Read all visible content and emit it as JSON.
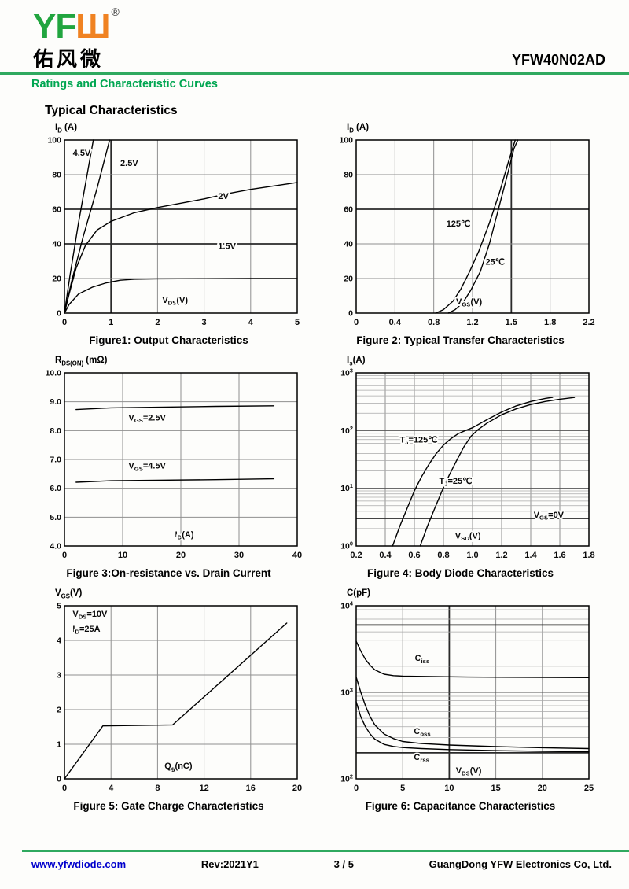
{
  "header": {
    "logo_green": "YF",
    "logo_orange": "Ш",
    "registered_mark": "®",
    "logo_chinese": "佑风微",
    "part_number": "YFW40N02AD",
    "section_title": "Ratings and Characteristic Curves"
  },
  "page_title": "Typical Characteristics",
  "footer": {
    "website": "www.yfwdiode.com",
    "revision": "Rev:2021Y1",
    "page_indicator": "3 / 5",
    "company": "GuangDong YFW Electronics Co, Ltd."
  },
  "colors": {
    "brand_green": "#00A651",
    "logo_orange": "#F08221",
    "link_blue": "#0000CC",
    "grid_gray": "#8f8f8f",
    "emphasis_dark": "#2a2a2a",
    "curve_black": "#000000"
  },
  "chart_data": [
    {
      "name": "figure-1",
      "type": "line",
      "caption": "Figure1: Output Characteristics",
      "y_title": "I_{D} (A)",
      "x": {
        "min": 0,
        "max": 5,
        "ticks": [
          0,
          1,
          2,
          3,
          4,
          5
        ],
        "tick_labels": [
          "0",
          "1",
          "2",
          "3",
          "4",
          "5"
        ],
        "emph": [
          1
        ]
      },
      "y": {
        "min": 0,
        "max": 100,
        "ticks": [
          0,
          20,
          40,
          60,
          80,
          100
        ],
        "tick_labels": [
          "0",
          "20",
          "40",
          "60",
          "80",
          "100"
        ],
        "emph": [
          40,
          60
        ]
      },
      "series": [
        {
          "name": "VGS=4.5V",
          "points": [
            [
              0,
              0
            ],
            [
              0.12,
              22
            ],
            [
              0.3,
              52
            ],
            [
              0.5,
              82
            ],
            [
              0.62,
              100
            ]
          ]
        },
        {
          "name": "VGS=2.5V",
          "points": [
            [
              0,
              0
            ],
            [
              0.15,
              18
            ],
            [
              0.4,
              44
            ],
            [
              0.7,
              72
            ],
            [
              0.97,
              100
            ]
          ]
        },
        {
          "name": "VGS=2V",
          "points": [
            [
              0,
              0
            ],
            [
              0.1,
              11
            ],
            [
              0.25,
              26
            ],
            [
              0.45,
              39
            ],
            [
              0.7,
              48
            ],
            [
              1.0,
              53
            ],
            [
              1.5,
              58
            ],
            [
              2.0,
              61
            ],
            [
              2.5,
              63.5
            ],
            [
              3.0,
              66
            ],
            [
              3.5,
              69
            ],
            [
              4.0,
              71.5
            ],
            [
              4.5,
              73.5
            ],
            [
              5.0,
              75.5
            ]
          ]
        },
        {
          "name": "VGS=1.5V",
          "points": [
            [
              0,
              0
            ],
            [
              0.1,
              5
            ],
            [
              0.3,
              11
            ],
            [
              0.6,
              15
            ],
            [
              0.9,
              17.5
            ],
            [
              1.2,
              19
            ],
            [
              1.5,
              19.6
            ],
            [
              2.0,
              19.8
            ],
            [
              3.0,
              19.9
            ],
            [
              4.0,
              20
            ],
            [
              5.0,
              20
            ]
          ]
        }
      ],
      "labels": [
        {
          "text": "4.5V",
          "x": 0.18,
          "y": 91
        },
        {
          "text": "2.5V",
          "x": 1.2,
          "y": 85
        },
        {
          "text": "2V",
          "x": 3.3,
          "y": 66
        },
        {
          "text": "1.5V",
          "x": 3.3,
          "y": 37
        },
        {
          "text": "V_{DS}(V)",
          "x": 2.1,
          "y": 6
        }
      ]
    },
    {
      "name": "figure-2",
      "type": "line",
      "caption": "Figure 2: Typical Transfer Characteristics",
      "y_title": "I_{D} (A)",
      "x": {
        "even": true,
        "ticks": [
          0,
          0.4,
          0.8,
          1.2,
          1.5,
          1.8,
          2.2
        ],
        "tick_labels": [
          "0",
          "0.4",
          "0.8",
          "1.2",
          "1.5",
          "1.8",
          "2.2"
        ],
        "emph": [
          1.5
        ]
      },
      "y": {
        "min": 0,
        "max": 100,
        "ticks": [
          0,
          20,
          40,
          60,
          80,
          100
        ],
        "tick_labels": [
          "0",
          "20",
          "40",
          "60",
          "80",
          "100"
        ],
        "emph": [
          60
        ]
      },
      "series": [
        {
          "name": "125C",
          "points": [
            [
              0.82,
              0
            ],
            [
              0.9,
              2
            ],
            [
              1.0,
              7
            ],
            [
              1.08,
              14
            ],
            [
              1.17,
              24
            ],
            [
              1.25,
              36
            ],
            [
              1.33,
              52
            ],
            [
              1.41,
              70
            ],
            [
              1.48,
              88
            ],
            [
              1.53,
              100
            ]
          ]
        },
        {
          "name": "25C",
          "points": [
            [
              0.95,
              0
            ],
            [
              1.02,
              2
            ],
            [
              1.1,
              6
            ],
            [
              1.18,
              13
            ],
            [
              1.26,
              24
            ],
            [
              1.33,
              40
            ],
            [
              1.4,
              60
            ],
            [
              1.47,
              80
            ],
            [
              1.52,
              95
            ],
            [
              1.55,
              100
            ]
          ]
        }
      ],
      "labels": [
        {
          "text": "125℃",
          "x": 0.93,
          "y": 50
        },
        {
          "text": "25℃",
          "x": 1.3,
          "y": 28
        },
        {
          "text": "V_{GS}(V)",
          "x": 1.03,
          "y": 5
        }
      ]
    },
    {
      "name": "figure-3",
      "type": "line",
      "caption": "Figure 3:On-resistance vs. Drain Current",
      "y_title": "R_{DS(ON)} (mΩ)",
      "x": {
        "min": 0,
        "max": 40,
        "ticks": [
          0,
          10,
          20,
          30,
          40
        ],
        "tick_labels": [
          "0",
          "10",
          "20",
          "30",
          "40"
        ],
        "emph": []
      },
      "y": {
        "min": 4,
        "max": 10,
        "ticks": [
          4,
          5,
          6,
          7,
          8,
          9,
          10
        ],
        "tick_labels": [
          "4.0",
          "5.0",
          "6.0",
          "7.0",
          "8.0",
          "9.0",
          "10.0"
        ],
        "emph": []
      },
      "series": [
        {
          "name": "VGS=2.5V",
          "points": [
            [
              2,
              8.73
            ],
            [
              8,
              8.79
            ],
            [
              16,
              8.81
            ],
            [
              26,
              8.84
            ],
            [
              36,
              8.86
            ]
          ]
        },
        {
          "name": "VGS=4.5V",
          "points": [
            [
              2,
              6.21
            ],
            [
              8,
              6.26
            ],
            [
              16,
              6.28
            ],
            [
              26,
              6.3
            ],
            [
              36,
              6.33
            ]
          ]
        }
      ],
      "labels": [
        {
          "text": "V_{GS}=2.5V",
          "x": 11,
          "y": 8.35
        },
        {
          "text": "V_{GS}=4.5V",
          "x": 11,
          "y": 6.68
        },
        {
          "text": "I_{D}(A)",
          "x": 19,
          "y": 4.3
        }
      ]
    },
    {
      "name": "figure-4",
      "type": "line",
      "caption": "Figure 4: Body Diode Characteristics",
      "y_title": "I_{s}(A)",
      "x": {
        "min": 0.2,
        "max": 1.8,
        "ticks": [
          0.2,
          0.4,
          0.6,
          0.8,
          1.0,
          1.2,
          1.4,
          1.6,
          1.8
        ],
        "tick_labels": [
          "0.2",
          "0.4",
          "0.6",
          "0.8",
          "1.0",
          "1.2",
          "1.4",
          "1.6",
          "1.8"
        ],
        "emph": []
      },
      "y": {
        "log": true,
        "min": 1,
        "max": 1000,
        "tick_labels": [
          "10^{0}",
          "10^{1}",
          "10^{2}",
          "10^{3}"
        ],
        "emph_minor": [
          3
        ]
      },
      "series": [
        {
          "name": "TJ=125C",
          "points": [
            [
              0.45,
              1
            ],
            [
              0.5,
              2.2
            ],
            [
              0.55,
              4.5
            ],
            [
              0.6,
              9
            ],
            [
              0.65,
              16
            ],
            [
              0.7,
              26
            ],
            [
              0.75,
              40
            ],
            [
              0.8,
              56
            ],
            [
              0.85,
              72
            ],
            [
              0.9,
              88
            ],
            [
              0.95,
              100
            ],
            [
              1.0,
              112
            ],
            [
              1.1,
              155
            ],
            [
              1.2,
              210
            ],
            [
              1.3,
              268
            ],
            [
              1.4,
              320
            ],
            [
              1.5,
              362
            ],
            [
              1.55,
              378
            ]
          ]
        },
        {
          "name": "TJ=25C",
          "points": [
            [
              0.64,
              1
            ],
            [
              0.69,
              2.2
            ],
            [
              0.74,
              4.5
            ],
            [
              0.79,
              9
            ],
            [
              0.84,
              17
            ],
            [
              0.89,
              30
            ],
            [
              0.94,
              52
            ],
            [
              0.99,
              80
            ],
            [
              1.04,
              105
            ],
            [
              1.1,
              135
            ],
            [
              1.2,
              188
            ],
            [
              1.3,
              238
            ],
            [
              1.4,
              283
            ],
            [
              1.5,
              320
            ],
            [
              1.6,
              350
            ],
            [
              1.7,
              375
            ]
          ]
        }
      ],
      "labels": [
        {
          "text": "T_{J}=125℃",
          "x": 0.5,
          "y": 62
        },
        {
          "text": "T_{J}=25℃",
          "x": 0.77,
          "y": 12
        },
        {
          "text": "V_{GS}=0V",
          "x": 1.42,
          "y": 3.1
        },
        {
          "text": "V_{SD}(V)",
          "x": 0.88,
          "y": 1.35
        }
      ]
    },
    {
      "name": "figure-5",
      "type": "line",
      "caption": "Figure 5: Gate Charge Characteristics",
      "y_title": "V_{GS}(V)",
      "x": {
        "min": 0,
        "max": 20,
        "ticks": [
          0,
          4,
          8,
          12,
          16,
          20
        ],
        "tick_labels": [
          "0",
          "4",
          "8",
          "12",
          "16",
          "20"
        ],
        "emph": []
      },
      "y": {
        "min": 0,
        "max": 5,
        "ticks": [
          0,
          1,
          2,
          3,
          4,
          5
        ],
        "tick_labels": [
          "0",
          "1",
          "2",
          "3",
          "4",
          "5"
        ],
        "emph": []
      },
      "series": [
        {
          "name": "gate-charge",
          "points": [
            [
              0,
              0
            ],
            [
              3.3,
              1.53
            ],
            [
              9.3,
              1.56
            ],
            [
              19.1,
              4.5
            ]
          ]
        }
      ],
      "labels": [
        {
          "text": "V_{DS}=10V",
          "x": 0.7,
          "y": 4.68
        },
        {
          "text": "I_{D}=25A",
          "x": 0.7,
          "y": 4.25
        },
        {
          "text": "Q_{g}(nC)",
          "x": 8.6,
          "y": 0.3
        }
      ]
    },
    {
      "name": "figure-6",
      "type": "line",
      "caption": "Figure 6: Capacitance Characteristics",
      "y_title": "C(pF)",
      "x": {
        "min": 0,
        "max": 25,
        "ticks": [
          0,
          5,
          10,
          15,
          20,
          25
        ],
        "tick_labels": [
          "0",
          "5",
          "10",
          "15",
          "20",
          "25"
        ],
        "emph": [
          10
        ]
      },
      "y": {
        "log": true,
        "min": 100,
        "max": 10000,
        "tick_labels": [
          "10^{2}",
          "10^{3}",
          "10^{4}"
        ],
        "emph_minor": [
          6000,
          200
        ]
      },
      "series": [
        {
          "name": "Ciss",
          "points": [
            [
              0,
              3900
            ],
            [
              0.5,
              3000
            ],
            [
              1,
              2400
            ],
            [
              1.5,
              2050
            ],
            [
              2,
              1820
            ],
            [
              3,
              1620
            ],
            [
              4,
              1560
            ],
            [
              5,
              1540
            ],
            [
              8,
              1520
            ],
            [
              12,
              1500
            ],
            [
              18,
              1490
            ],
            [
              25,
              1480
            ]
          ]
        },
        {
          "name": "Coss",
          "points": [
            [
              0,
              1500
            ],
            [
              0.5,
              1000
            ],
            [
              1,
              700
            ],
            [
              1.5,
              520
            ],
            [
              2,
              420
            ],
            [
              3,
              330
            ],
            [
              4,
              292
            ],
            [
              5,
              270
            ],
            [
              7,
              256
            ],
            [
              10,
              246
            ],
            [
              15,
              236
            ],
            [
              20,
              229
            ],
            [
              25,
              224
            ]
          ]
        },
        {
          "name": "Crss",
          "points": [
            [
              0,
              780
            ],
            [
              0.5,
              520
            ],
            [
              1,
              400
            ],
            [
              1.5,
              330
            ],
            [
              2,
              288
            ],
            [
              3,
              250
            ],
            [
              4,
              237
            ],
            [
              5,
              230
            ],
            [
              7,
              224
            ],
            [
              10,
              218
            ],
            [
              15,
              212
            ],
            [
              20,
              208
            ],
            [
              25,
              205
            ]
          ]
        }
      ],
      "labels": [
        {
          "text": "C_{iss}",
          "x": 6.3,
          "y": 2300
        },
        {
          "text": "C_{oss}",
          "x": 6.2,
          "y": 330
        },
        {
          "text": "C_{rss}",
          "x": 6.2,
          "y": 165
        },
        {
          "text": "V_{DS}(V)",
          "x": 10.7,
          "y": 116
        }
      ]
    }
  ]
}
